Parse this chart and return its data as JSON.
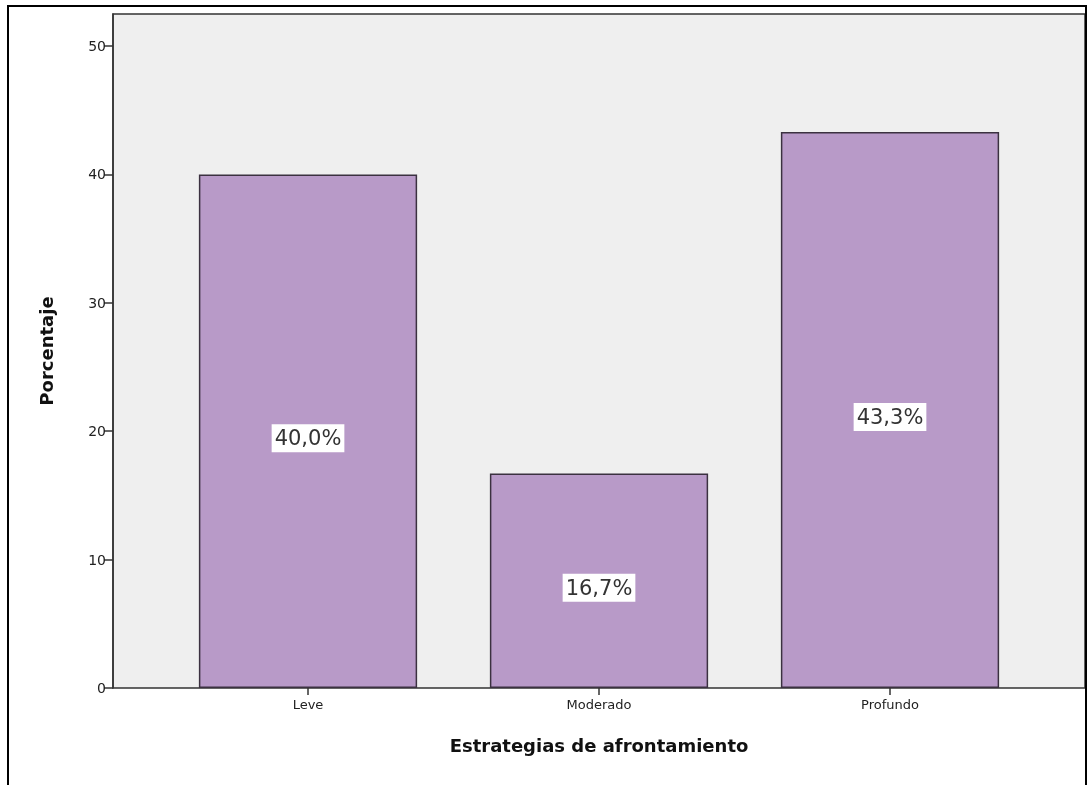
{
  "chart_data": {
    "type": "bar",
    "xlabel": "Estrategias de afrontamiento",
    "ylabel": "Porcentaje",
    "categories": [
      "Leve",
      "Moderado",
      "Profundo"
    ],
    "values": [
      40.0,
      16.7,
      43.3
    ],
    "color": "#b89ac8",
    "value_labels": [
      "40,0%",
      "16,7%",
      "43,3%"
    ],
    "ylim": [
      0,
      52.5
    ],
    "yticks": [
      0,
      10,
      20,
      30,
      40,
      50
    ]
  }
}
